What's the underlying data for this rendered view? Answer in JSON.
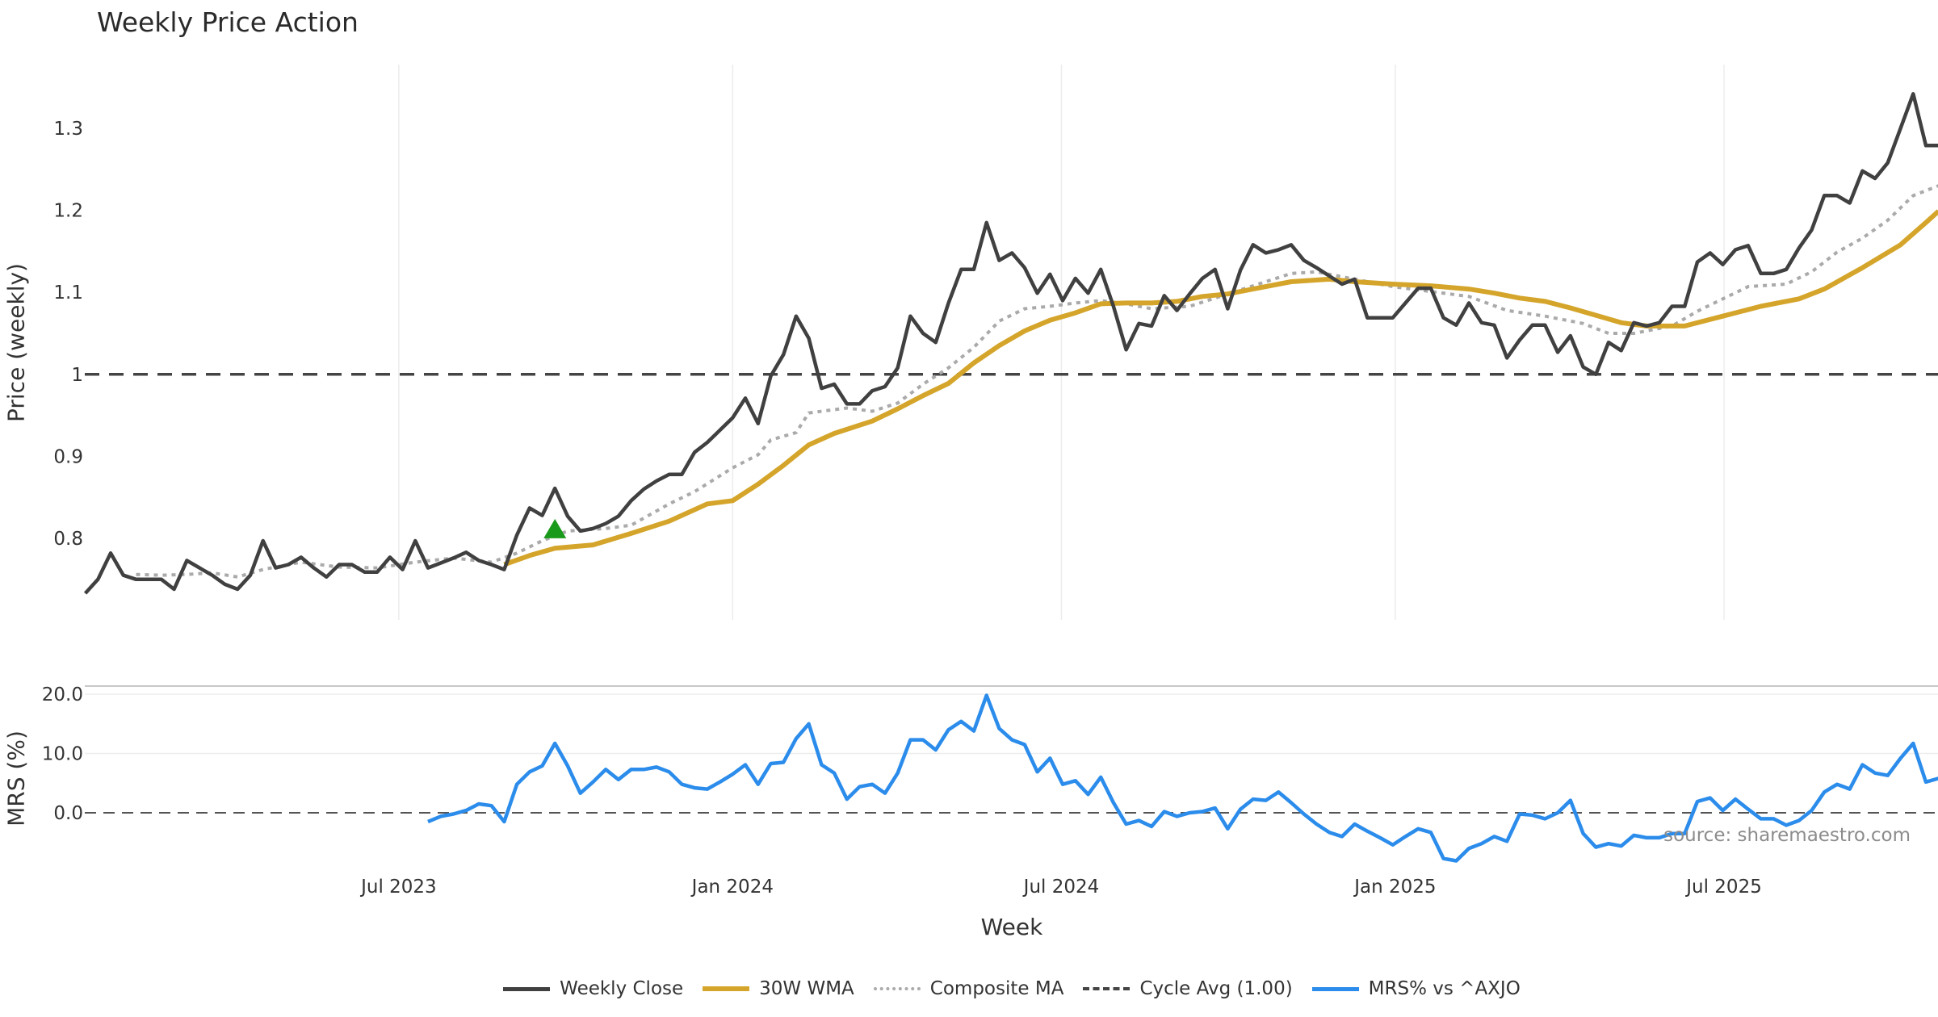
{
  "title": "Weekly Price Action",
  "source": "source: sharemaestro.com",
  "legend": [
    {
      "label": "Weekly Close",
      "color": "#404040",
      "style": "solid"
    },
    {
      "label": "30W WMA",
      "color": "#d4a52a",
      "style": "solid"
    },
    {
      "label": "Composite MA",
      "color": "#aaaaaa",
      "style": "dotted"
    },
    {
      "label": "Cycle Avg (1.00)",
      "color": "#444444",
      "style": "dashed"
    },
    {
      "label": "MRS% vs ^AXJO",
      "color": "#2b8ceb",
      "style": "solid"
    }
  ],
  "chart_data": [
    {
      "type": "line",
      "panel": "price",
      "ylabel": "Price (weekly)",
      "ylim": [
        0.71,
        1.38
      ],
      "yticks": [
        0.8,
        0.9,
        1.0,
        1.1,
        1.2,
        1.3
      ],
      "ytick_labels": [
        "0.8",
        "0.9",
        "1",
        "1.1",
        "1.2",
        "1.3"
      ],
      "x_unit": "week index",
      "reference_line": {
        "name": "Cycle Avg (1.00)",
        "value": 1.0
      },
      "series": [
        {
          "name": "Weekly Close",
          "start_index": 0,
          "values": [
            0.733,
            0.75,
            0.782,
            0.755,
            0.75,
            0.75,
            0.75,
            0.738,
            0.773,
            0.764,
            0.755,
            0.744,
            0.738,
            0.755,
            0.797,
            0.764,
            0.768,
            0.777,
            0.764,
            0.753,
            0.768,
            0.768,
            0.759,
            0.759,
            0.777,
            0.762,
            0.797,
            0.764,
            0.77,
            0.776,
            0.783,
            0.773,
            0.768,
            0.762,
            0.804,
            0.837,
            0.828,
            0.861,
            0.827,
            0.809,
            0.812,
            0.818,
            0.827,
            0.846,
            0.86,
            0.87,
            0.878,
            0.878,
            0.905,
            0.917,
            0.932,
            0.947,
            0.971,
            0.94,
            0.998,
            1.024,
            1.071,
            1.044,
            0.983,
            0.988,
            0.964,
            0.964,
            0.98,
            0.985,
            1.008,
            1.071,
            1.05,
            1.039,
            1.087,
            1.128,
            1.128,
            1.185,
            1.139,
            1.148,
            1.13,
            1.099,
            1.122,
            1.09,
            1.117,
            1.099,
            1.128,
            1.083,
            1.03,
            1.062,
            1.059,
            1.096,
            1.078,
            1.098,
            1.117,
            1.128,
            1.08,
            1.127,
            1.158,
            1.148,
            1.152,
            1.158,
            1.139,
            1.13,
            1.12,
            1.11,
            1.116,
            1.069,
            1.069,
            1.069,
            1.087,
            1.105,
            1.105,
            1.069,
            1.06,
            1.087,
            1.063,
            1.06,
            1.02,
            1.042,
            1.06,
            1.06,
            1.027,
            1.047,
            1.009,
            1.0,
            1.039,
            1.029,
            1.063,
            1.059,
            1.063,
            1.083,
            1.083,
            1.137,
            1.148,
            1.134,
            1.152,
            1.157,
            1.123,
            1.123,
            1.128,
            1.154,
            1.176,
            1.218,
            1.218,
            1.209,
            1.248,
            1.239,
            1.258,
            1.3,
            1.342,
            1.279,
            1.279
          ]
        },
        {
          "name": "30W WMA",
          "points": [
            [
              33,
              0.768
            ],
            [
              35,
              0.779
            ],
            [
              37,
              0.788
            ],
            [
              40,
              0.792
            ],
            [
              43,
              0.806
            ],
            [
              46,
              0.821
            ],
            [
              49,
              0.842
            ],
            [
              51,
              0.846
            ],
            [
              53,
              0.866
            ],
            [
              55,
              0.889
            ],
            [
              57,
              0.914
            ],
            [
              59,
              0.928
            ],
            [
              62,
              0.943
            ],
            [
              64,
              0.958
            ],
            [
              66,
              0.974
            ],
            [
              68,
              0.989
            ],
            [
              70,
              1.014
            ],
            [
              72,
              1.035
            ],
            [
              74,
              1.053
            ],
            [
              76,
              1.066
            ],
            [
              78,
              1.075
            ],
            [
              80,
              1.086
            ],
            [
              82,
              1.087
            ],
            [
              84,
              1.087
            ],
            [
              86,
              1.089
            ],
            [
              88,
              1.095
            ],
            [
              90,
              1.098
            ],
            [
              92,
              1.104
            ],
            [
              95,
              1.113
            ],
            [
              98,
              1.116
            ],
            [
              100,
              1.113
            ],
            [
              103,
              1.11
            ],
            [
              106,
              1.108
            ],
            [
              109,
              1.104
            ],
            [
              111,
              1.099
            ],
            [
              113,
              1.093
            ],
            [
              115,
              1.089
            ],
            [
              117,
              1.081
            ],
            [
              119,
              1.072
            ],
            [
              121,
              1.063
            ],
            [
              123,
              1.059
            ],
            [
              126,
              1.059
            ],
            [
              129,
              1.071
            ],
            [
              132,
              1.083
            ],
            [
              135,
              1.092
            ],
            [
              137,
              1.104
            ],
            [
              140,
              1.13
            ],
            [
              143,
              1.158
            ],
            [
              145,
              1.185
            ],
            [
              146,
              1.199
            ]
          ]
        },
        {
          "name": "Composite MA",
          "points": [
            [
              4,
              0.756
            ],
            [
              6,
              0.755
            ],
            [
              8,
              0.756
            ],
            [
              10,
              0.758
            ],
            [
              12,
              0.753
            ],
            [
              14,
              0.762
            ],
            [
              17,
              0.771
            ],
            [
              20,
              0.765
            ],
            [
              23,
              0.764
            ],
            [
              26,
              0.771
            ],
            [
              29,
              0.776
            ],
            [
              32,
              0.771
            ],
            [
              34,
              0.782
            ],
            [
              36,
              0.797
            ],
            [
              38,
              0.809
            ],
            [
              41,
              0.812
            ],
            [
              43,
              0.816
            ],
            [
              46,
              0.842
            ],
            [
              48,
              0.857
            ],
            [
              51,
              0.886
            ],
            [
              53,
              0.902
            ],
            [
              54,
              0.92
            ],
            [
              56,
              0.929
            ],
            [
              57,
              0.953
            ],
            [
              60,
              0.959
            ],
            [
              62,
              0.955
            ],
            [
              64,
              0.965
            ],
            [
              66,
              0.988
            ],
            [
              68,
              1.008
            ],
            [
              70,
              1.033
            ],
            [
              72,
              1.065
            ],
            [
              74,
              1.08
            ],
            [
              76,
              1.083
            ],
            [
              78,
              1.087
            ],
            [
              80,
              1.09
            ],
            [
              82,
              1.086
            ],
            [
              84,
              1.08
            ],
            [
              87,
              1.083
            ],
            [
              89,
              1.093
            ],
            [
              92,
              1.108
            ],
            [
              95,
              1.123
            ],
            [
              97,
              1.125
            ],
            [
              100,
              1.116
            ],
            [
              103,
              1.107
            ],
            [
              106,
              1.101
            ],
            [
              109,
              1.095
            ],
            [
              112,
              1.078
            ],
            [
              115,
              1.071
            ],
            [
              118,
              1.062
            ],
            [
              120,
              1.05
            ],
            [
              122,
              1.05
            ],
            [
              125,
              1.059
            ],
            [
              127,
              1.077
            ],
            [
              129,
              1.092
            ],
            [
              131,
              1.107
            ],
            [
              134,
              1.11
            ],
            [
              136,
              1.125
            ],
            [
              138,
              1.149
            ],
            [
              140,
              1.166
            ],
            [
              142,
              1.188
            ],
            [
              144,
              1.218
            ],
            [
              146,
              1.23
            ]
          ]
        }
      ],
      "markers": [
        {
          "name": "buy-signal",
          "shape": "triangle-up",
          "color": "#1a9a1a",
          "index": 37,
          "value": 0.81
        }
      ]
    },
    {
      "type": "line",
      "panel": "mrs",
      "ylabel": "MRS (%)",
      "ylim": [
        -9.5,
        21
      ],
      "yticks": [
        0,
        10,
        20
      ],
      "ytick_labels": [
        "0.0",
        "10.0",
        "20.0"
      ],
      "reference_line": {
        "name": "zero",
        "value": 0
      },
      "series": [
        {
          "name": "MRS% vs ^AXJO",
          "start_index": 27,
          "values": [
            -1.5,
            -0.6,
            -0.2,
            0.4,
            1.5,
            1.2,
            -1.5,
            4.8,
            6.9,
            7.9,
            11.7,
            7.9,
            3.3,
            5.2,
            7.3,
            5.6,
            7.3,
            7.3,
            7.7,
            6.9,
            4.8,
            4.2,
            4.0,
            5.2,
            6.5,
            8.1,
            4.8,
            8.3,
            8.5,
            12.5,
            15.0,
            8.1,
            6.7,
            2.3,
            4.4,
            4.8,
            3.3,
            6.7,
            12.3,
            12.3,
            10.6,
            14.0,
            15.4,
            13.8,
            19.8,
            14.2,
            12.3,
            11.5,
            6.9,
            9.2,
            4.8,
            5.4,
            3.1,
            6.0,
            1.7,
            -1.9,
            -1.3,
            -2.3,
            0.2,
            -0.6,
            0.0,
            0.2,
            0.8,
            -2.7,
            0.6,
            2.3,
            2.1,
            3.5,
            1.7,
            -0.2,
            -1.9,
            -3.3,
            -4.0,
            -1.9,
            -3.1,
            -4.2,
            -5.4,
            -4.0,
            -2.7,
            -3.3,
            -7.7,
            -8.1,
            -6.0,
            -5.2,
            -4.0,
            -4.8,
            -0.2,
            -0.4,
            -1.0,
            0.0,
            2.1,
            -3.5,
            -5.8,
            -5.2,
            -5.6,
            -3.8,
            -4.2,
            -4.2,
            -3.5,
            -3.5,
            1.9,
            2.5,
            0.4,
            2.3,
            0.6,
            -1.0,
            -1.0,
            -2.1,
            -1.3,
            0.4,
            3.5,
            4.8,
            4.0,
            8.1,
            6.7,
            6.3,
            9.2,
            11.7,
            5.2,
            5.8
          ]
        }
      ]
    }
  ],
  "xaxis": {
    "label": "Week",
    "ticks": [
      {
        "label": "Jul 2023",
        "index": 24.7
      },
      {
        "label": "Jan 2024",
        "index": 51.0
      },
      {
        "label": "Jul 2024",
        "index": 76.9
      },
      {
        "label": "Jan 2025",
        "index": 103.2
      },
      {
        "label": "Jul 2025",
        "index": 129.1
      }
    ]
  }
}
